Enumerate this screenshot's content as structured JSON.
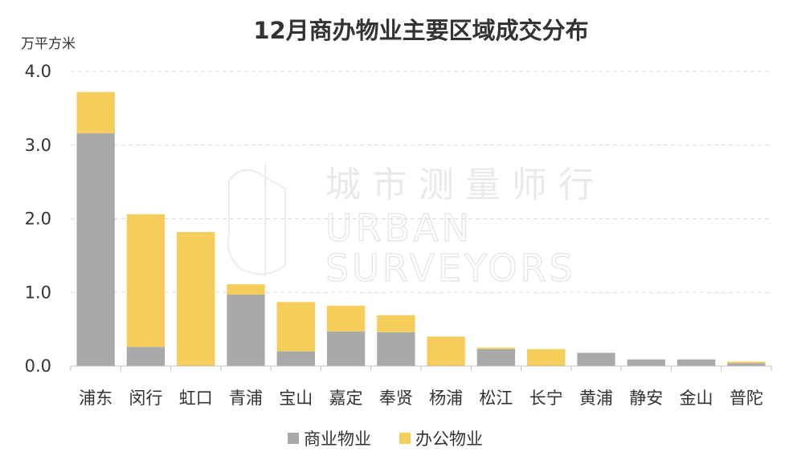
{
  "chart_data": {
    "type": "bar",
    "stacked": true,
    "title": "12月商办物业主要区域成交分布",
    "ylabel": "万平方米",
    "xlabel": "",
    "ylim": [
      0,
      4.0
    ],
    "yticks": [
      "0.0",
      "1.0",
      "2.0",
      "3.0",
      "4.0"
    ],
    "grid": true,
    "legend_position": "bottom",
    "categories": [
      "浦东",
      "闵行",
      "虹口",
      "青浦",
      "宝山",
      "嘉定",
      "奉贤",
      "杨浦",
      "松江",
      "长宁",
      "黄浦",
      "静安",
      "金山",
      "普陀"
    ],
    "series": [
      {
        "name": "商业物业",
        "color": "#a9a9a9",
        "values": [
          3.16,
          0.26,
          0.0,
          0.97,
          0.2,
          0.47,
          0.46,
          0.0,
          0.23,
          0.0,
          0.18,
          0.09,
          0.09,
          0.04
        ]
      },
      {
        "name": "办公物业",
        "color": "#f5cd5a",
        "values": [
          0.56,
          1.8,
          1.82,
          0.14,
          0.67,
          0.35,
          0.23,
          0.4,
          0.02,
          0.23,
          0.0,
          0.0,
          0.0,
          0.02
        ]
      }
    ]
  },
  "watermark": {
    "cn": "城市测量师行",
    "en_line1": "URBAN",
    "en_line2": "SURVEYORS"
  }
}
